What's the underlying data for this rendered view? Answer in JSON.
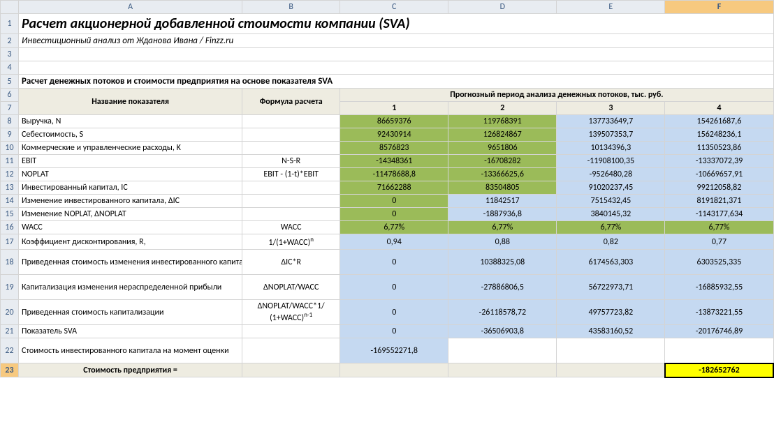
{
  "columns": [
    "A",
    "B",
    "C",
    "D",
    "E",
    "F"
  ],
  "title": "Расчет акционерной добавленной стоимости компании (SVA)",
  "subtitle": "Инвестиционный анализ от Жданова Ивана / Finzz.ru",
  "section": "Расчет денежных потоков и стоимости предприятия на основе показателя SVA",
  "header": {
    "name": "Название показателя",
    "formula": "Формула расчета",
    "forecast": "Прогнозный период анализа денежных потоков, тыс. руб.",
    "periods": [
      "1",
      "2",
      "3",
      "4"
    ]
  },
  "rows": [
    {
      "n": 8,
      "label": "Выручка, N",
      "formula": "",
      "v": [
        "86659376",
        "119768391",
        "137733649,7",
        "154261687,6"
      ],
      "style": [
        "green",
        "green",
        "blue",
        "blue"
      ]
    },
    {
      "n": 9,
      "label": "Себестоимость, S",
      "formula": "",
      "v": [
        "92430914",
        "126824867",
        "139507353,7",
        "156248236,1"
      ],
      "style": [
        "green",
        "green",
        "blue",
        "blue"
      ]
    },
    {
      "n": 10,
      "label": "Коммерческие и управленческие расходы, K",
      "formula": "",
      "v": [
        "8576823",
        "9651806",
        "10134396,3",
        "11350523,86"
      ],
      "style": [
        "green",
        "green",
        "blue",
        "blue"
      ]
    },
    {
      "n": 11,
      "label": "EBIT",
      "formula": "N-S-R",
      "v": [
        "-14348361",
        "-16708282",
        "-11908100,35",
        "-13337072,39"
      ],
      "style": [
        "green",
        "green",
        "blue",
        "blue"
      ]
    },
    {
      "n": 12,
      "label": "NOPLAT",
      "formula": "EBIT - (1-t)*EBIT",
      "v": [
        "-11478688,8",
        "-13366625,6",
        "-9526480,28",
        "-10669657,91"
      ],
      "style": [
        "green",
        "green",
        "blue",
        "blue"
      ]
    },
    {
      "n": 13,
      "label": "Инвестированный капитал, IC",
      "formula": "",
      "v": [
        "71662288",
        "83504805",
        "91020237,45",
        "99212058,82"
      ],
      "style": [
        "green",
        "green",
        "blue",
        "blue"
      ]
    },
    {
      "n": 14,
      "label": "Изменение инвестированного капитала, ΔIC",
      "formula": "",
      "v": [
        "0",
        "11842517",
        "7515432,45",
        "8191821,371"
      ],
      "style": [
        "green",
        "blue",
        "blue",
        "blue"
      ]
    },
    {
      "n": 15,
      "label": "Изменение NOPLAT, ΔNOPLAT",
      "formula": "",
      "v": [
        "0",
        "-1887936,8",
        "3840145,32",
        "-1143177,634"
      ],
      "style": [
        "green",
        "blue",
        "blue",
        "blue"
      ]
    },
    {
      "n": 16,
      "label": "WACC",
      "formula": "WACC",
      "v": [
        "6,77%",
        "6,77%",
        "6,77%",
        "6,77%"
      ],
      "style": [
        "green",
        "green",
        "green",
        "green"
      ]
    },
    {
      "n": 17,
      "label": "Коэффициент дисконтирования, R,",
      "formula_html": "1/(1+WACC)<sup>n</sup>",
      "v": [
        "0,94",
        "0,88",
        "0,82",
        "0,77"
      ],
      "style": [
        "blue",
        "blue",
        "blue",
        "blue"
      ]
    },
    {
      "n": 18,
      "tall": true,
      "label": "Приведенная стоимость изменения инвестированного капитала",
      "formula": "ΔIC*R",
      "v": [
        "0",
        "10388325,08",
        "6174563,303",
        "6303525,335"
      ],
      "style": [
        "blue",
        "blue",
        "blue",
        "blue"
      ]
    },
    {
      "n": 19,
      "tall": true,
      "label": "Капитализация изменения нераспределенной прибыли",
      "formula": "ΔNOPLAT/WACC",
      "v": [
        "0",
        "-27886806,5",
        "56722973,71",
        "-16885932,55"
      ],
      "style": [
        "blue",
        "blue",
        "blue",
        "blue"
      ]
    },
    {
      "n": 20,
      "tall": true,
      "label": "Приведенная стоимость капитализации",
      "formula_html": "ΔNOPLAT/WACC*1/<br>(1+WACC)<sup>n-1</sup>",
      "v": [
        "0",
        "-26118578,72",
        "49757723,82",
        "-13873221,55"
      ],
      "style": [
        "blue",
        "blue",
        "blue",
        "blue"
      ]
    },
    {
      "n": 21,
      "label": "Показатель SVA",
      "formula": "",
      "v": [
        "0",
        "-36506903,8",
        "43583160,52",
        "-20176746,89"
      ],
      "style": [
        "blue",
        "blue",
        "blue",
        "blue"
      ]
    },
    {
      "n": 22,
      "tall": true,
      "label": "Стоимость инвестированного капитала на момент оценки",
      "formula": "",
      "v": [
        "-169552271,8",
        "",
        "",
        ""
      ],
      "cellstyle": [
        "blue",
        "",
        "",
        ""
      ]
    }
  ],
  "footer": {
    "n": 23,
    "label": "Стоимость предприятия =",
    "value": "-182652762"
  },
  "colors": {
    "green": "#9bbb59",
    "blue": "#c5d9f1",
    "yellow": "#ffff00",
    "header_bg": "#eeece1",
    "colhdr_bg": "#e8ecf1"
  }
}
